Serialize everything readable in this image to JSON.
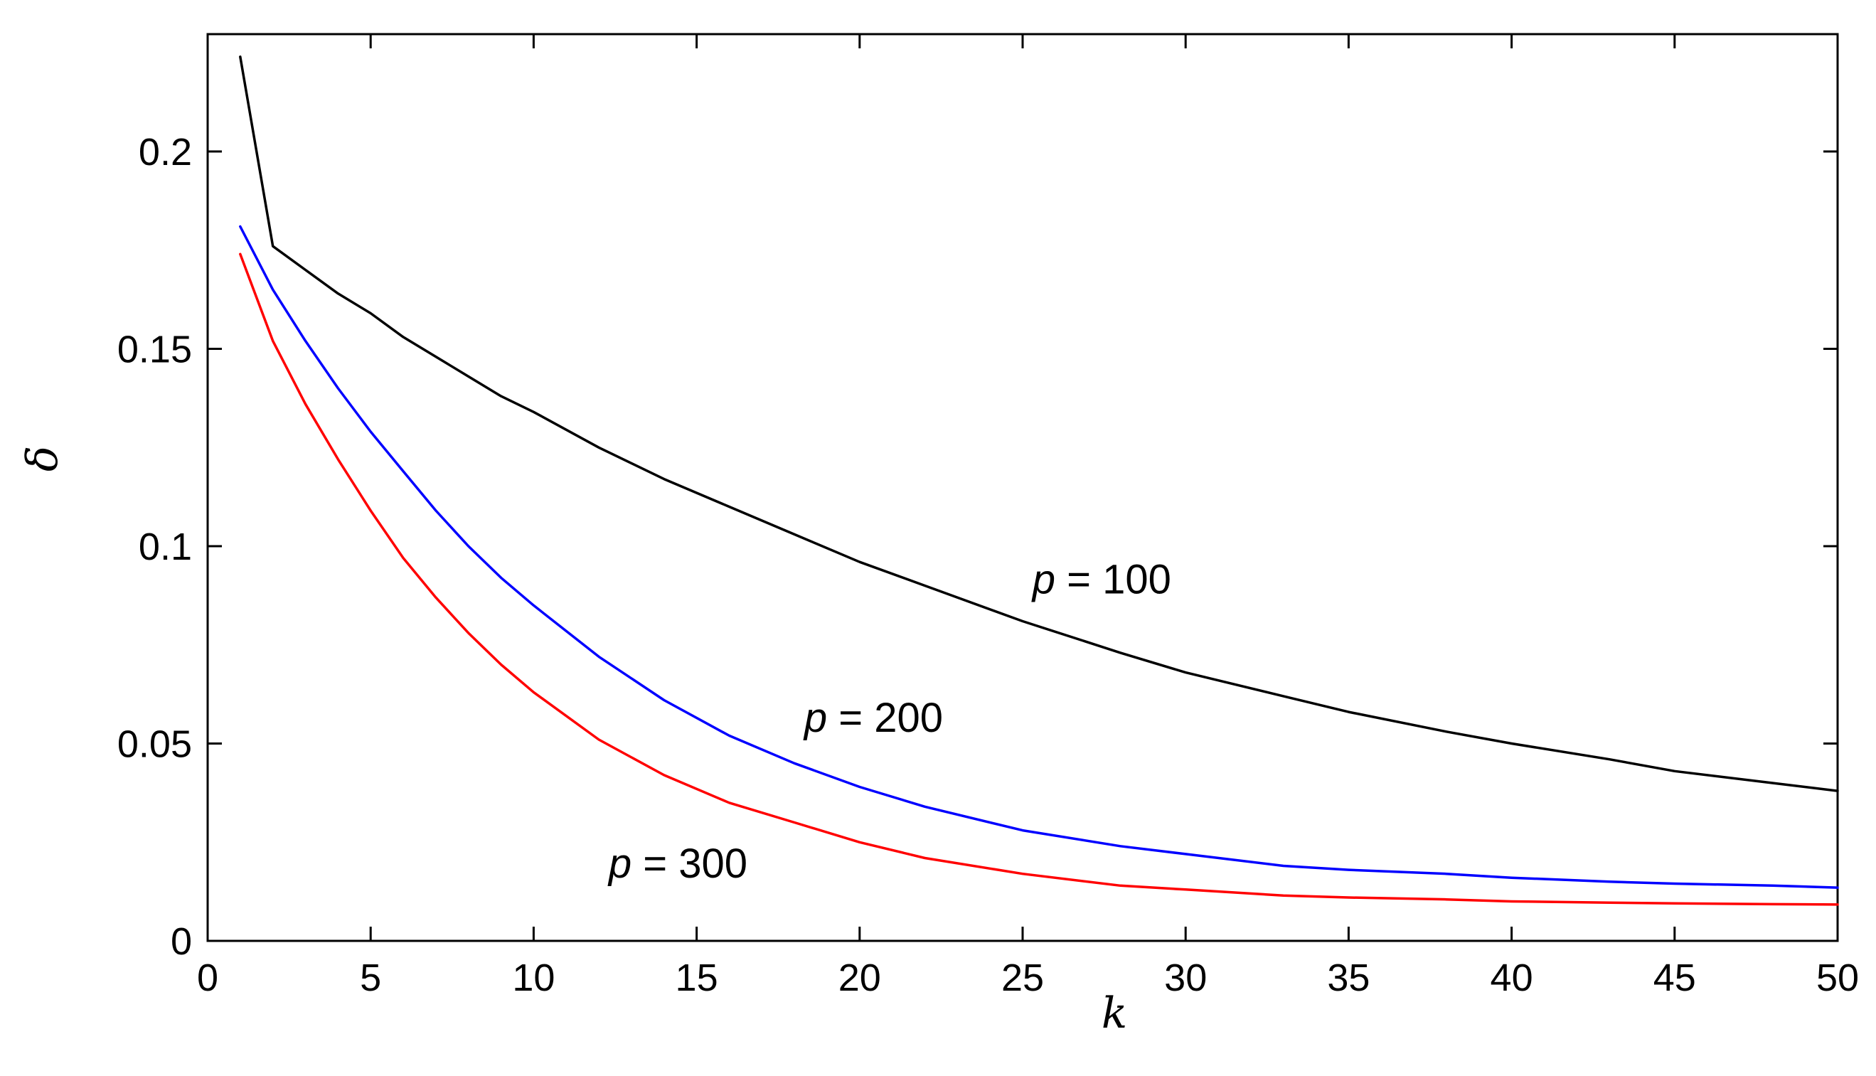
{
  "chart_data": {
    "type": "line",
    "xlabel": "k",
    "ylabel": "δ",
    "xlim": [
      0,
      50
    ],
    "ylim": [
      0,
      0.2
    ],
    "x_ticks": [
      "0",
      "5",
      "10",
      "15",
      "20",
      "25",
      "30",
      "35",
      "40",
      "45",
      "50"
    ],
    "y_ticks": [
      "0",
      "0.05",
      "0.1",
      "0.15",
      "0.2"
    ],
    "grid": false,
    "legend": "none",
    "series": [
      {
        "name": "p = 100",
        "color": "#000000",
        "x": [
          1,
          2,
          3,
          4,
          5,
          6,
          7,
          8,
          9,
          10,
          12,
          14,
          16,
          18,
          20,
          22,
          25,
          28,
          30,
          33,
          35,
          38,
          40,
          43,
          45,
          48,
          50
        ],
        "y": [
          0.224,
          0.176,
          0.17,
          0.164,
          0.159,
          0.153,
          0.148,
          0.143,
          0.138,
          0.134,
          0.125,
          0.117,
          0.11,
          0.103,
          0.096,
          0.09,
          0.081,
          0.073,
          0.068,
          0.062,
          0.058,
          0.053,
          0.05,
          0.046,
          0.043,
          0.04,
          0.038
        ]
      },
      {
        "name": "p = 200",
        "color": "#0000ff",
        "x": [
          1,
          2,
          3,
          4,
          5,
          6,
          7,
          8,
          9,
          10,
          12,
          14,
          16,
          18,
          20,
          22,
          25,
          28,
          30,
          33,
          35,
          38,
          40,
          43,
          45,
          48,
          50
        ],
        "y": [
          0.181,
          0.165,
          0.152,
          0.14,
          0.129,
          0.119,
          0.109,
          0.1,
          0.092,
          0.085,
          0.072,
          0.061,
          0.052,
          0.045,
          0.039,
          0.034,
          0.028,
          0.024,
          0.022,
          0.019,
          0.018,
          0.017,
          0.016,
          0.015,
          0.0145,
          0.014,
          0.0135
        ]
      },
      {
        "name": "p = 300",
        "color": "#ff0000",
        "x": [
          1,
          2,
          3,
          4,
          5,
          6,
          7,
          8,
          9,
          10,
          12,
          14,
          16,
          18,
          20,
          22,
          25,
          28,
          30,
          33,
          35,
          38,
          40,
          43,
          45,
          48,
          50
        ],
        "y": [
          0.174,
          0.152,
          0.136,
          0.122,
          0.109,
          0.097,
          0.087,
          0.078,
          0.07,
          0.063,
          0.051,
          0.042,
          0.035,
          0.03,
          0.025,
          0.021,
          0.017,
          0.014,
          0.013,
          0.0115,
          0.011,
          0.0105,
          0.01,
          0.0097,
          0.0095,
          0.0093,
          0.0092
        ]
      }
    ],
    "annotations": [
      {
        "var": "p",
        "text": " = 100",
        "x": 25.3,
        "y": 0.088
      },
      {
        "var": "p",
        "text": " = 200",
        "x": 18.3,
        "y": 0.053
      },
      {
        "var": "p",
        "text": " = 300",
        "x": 12.3,
        "y": 0.016
      }
    ]
  }
}
